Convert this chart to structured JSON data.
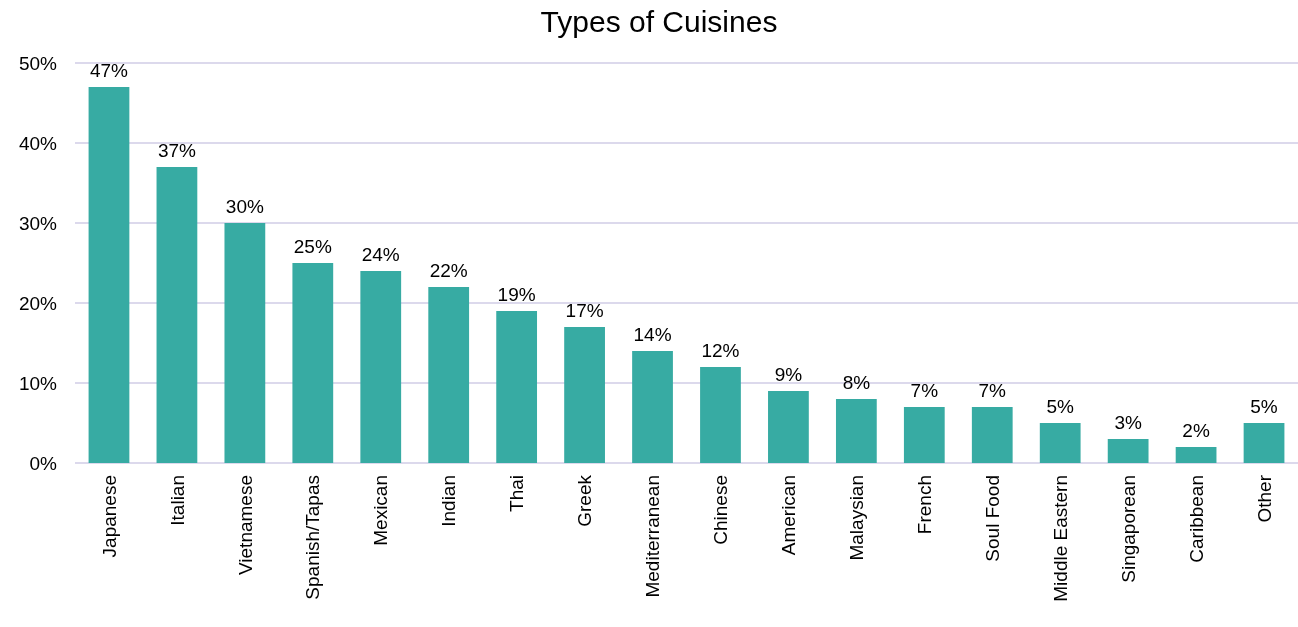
{
  "chart_data": {
    "type": "bar",
    "title": "Types of Cuisines",
    "categories": [
      "Japanese",
      "Italian",
      "Vietnamese",
      "Spanish/Tapas",
      "Mexican",
      "Indian",
      "Thai",
      "Greek",
      "Mediterranean",
      "Chinese",
      "American",
      "Malaysian",
      "French",
      "Soul Food",
      "Middle Eastern",
      "Singaporean",
      "Caribbean",
      "Other"
    ],
    "values": [
      47,
      37,
      30,
      25,
      24,
      22,
      19,
      17,
      14,
      12,
      9,
      8,
      7,
      7,
      5,
      3,
      2,
      5
    ],
    "value_labels": [
      "47%",
      "37%",
      "30%",
      "25%",
      "24%",
      "22%",
      "19%",
      "17%",
      "14%",
      "12%",
      "9%",
      "8%",
      "7%",
      "7%",
      "5%",
      "3%",
      "2%",
      "5%"
    ],
    "color": "#37aba3",
    "ylim": [
      0,
      50
    ],
    "yticks": [
      {
        "value": 0,
        "label": "0%"
      },
      {
        "value": 10,
        "label": "10%"
      },
      {
        "value": 20,
        "label": "20%"
      },
      {
        "value": 30,
        "label": "30%"
      },
      {
        "value": 40,
        "label": "40%"
      },
      {
        "value": 50,
        "label": "50%"
      }
    ],
    "grid": "y"
  }
}
